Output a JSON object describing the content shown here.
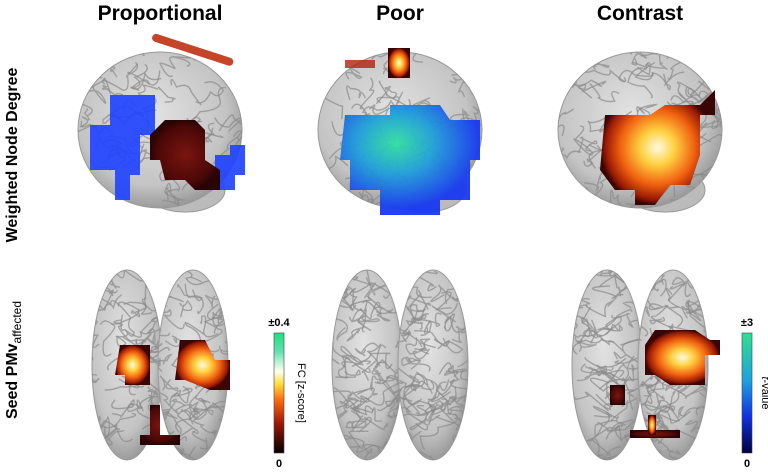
{
  "columns": [
    "Proportional",
    "Poor",
    "Contrast"
  ],
  "rows": [
    "Weighted Node Degree",
    {
      "main": "Seed PMv",
      "sub": "affected"
    }
  ],
  "colorbars": [
    {
      "top": "±0.4",
      "bottom": "0",
      "label": "FC [z-score]"
    },
    {
      "top": "±3",
      "bottom": "0",
      "label_italic": "t",
      "label": "-value"
    }
  ]
}
